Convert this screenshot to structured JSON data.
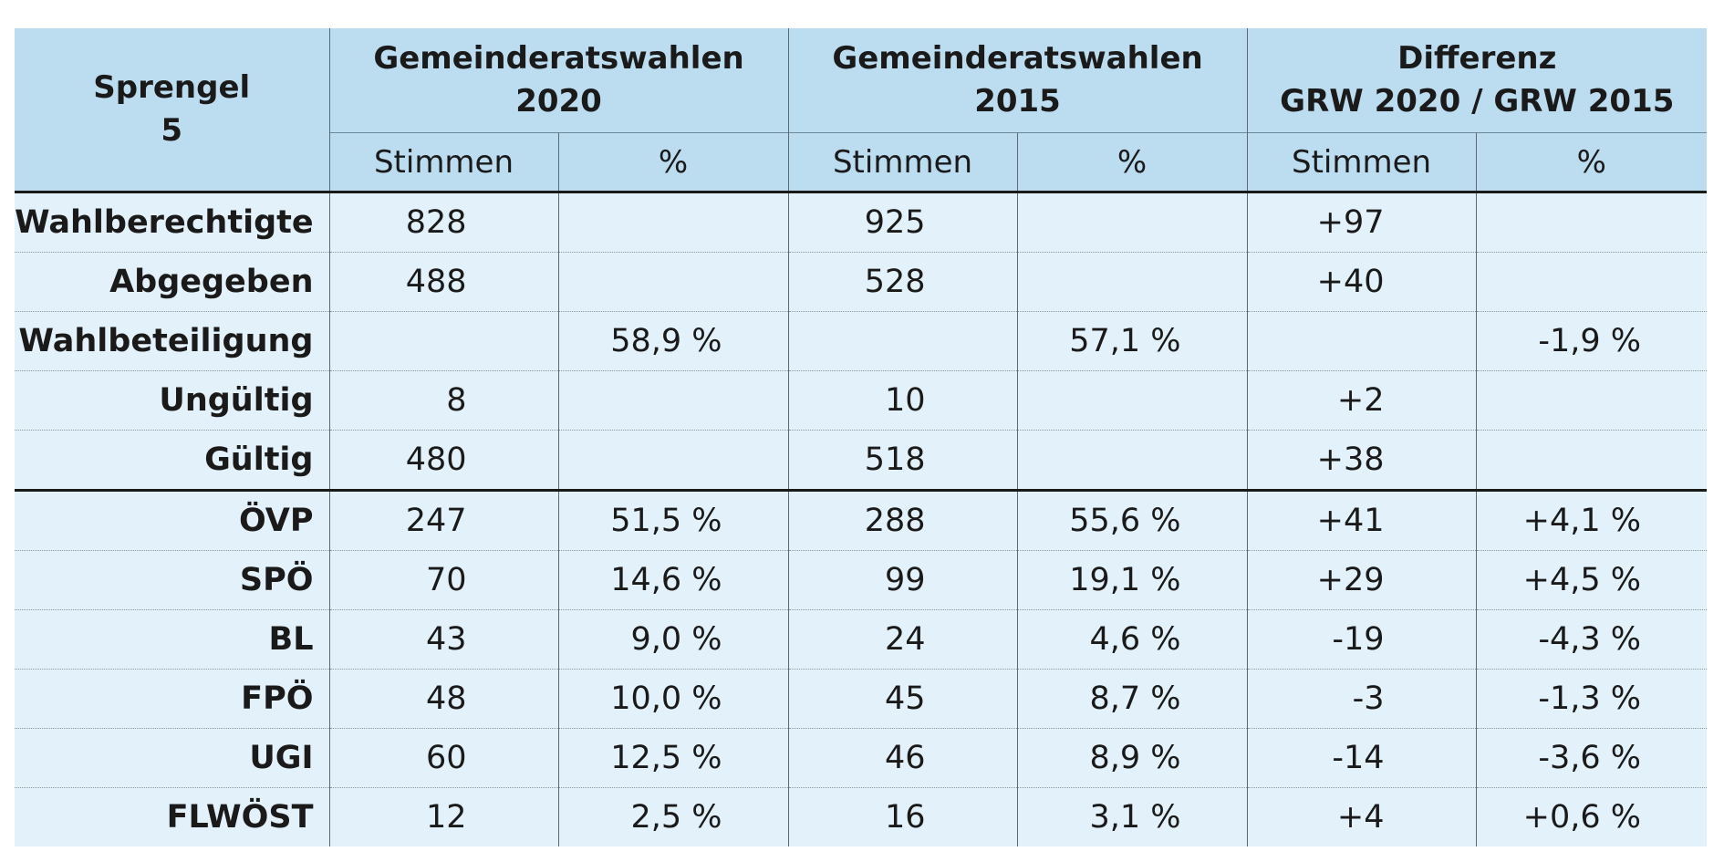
{
  "header": {
    "sprengel": [
      "Sprengel",
      "5"
    ],
    "groups": [
      [
        "Gemeinderatswahlen",
        "2020"
      ],
      [
        "Gemeinderatswahlen",
        "2015"
      ],
      [
        "Differenz",
        "GRW 2020 / GRW 2015"
      ]
    ],
    "subheaders": [
      "Stimmen",
      "%",
      "Stimmen",
      "%",
      "Stimmen",
      "%"
    ]
  },
  "rows": [
    {
      "label": "Wahlberechtigte",
      "values": [
        "828",
        "",
        "925",
        "",
        "+97",
        ""
      ]
    },
    {
      "label": "Abgegeben",
      "values": [
        "488",
        "",
        "528",
        "",
        "+40",
        ""
      ]
    },
    {
      "label": "Wahlbeteiligung",
      "values": [
        "",
        "58,9 %",
        "",
        "57,1 %",
        "",
        "-1,9 %"
      ]
    },
    {
      "label": "Ungültig",
      "values": [
        "8",
        "",
        "10",
        "",
        "+2",
        ""
      ]
    },
    {
      "label": "Gültig",
      "values": [
        "480",
        "",
        "518",
        "",
        "+38",
        ""
      ]
    },
    {
      "label": "ÖVP",
      "values": [
        "247",
        "51,5 %",
        "288",
        "55,6 %",
        "+41",
        "+4,1 %"
      ]
    },
    {
      "label": "SPÖ",
      "values": [
        "70",
        "14,6 %",
        "99",
        "19,1 %",
        "+29",
        "+4,5 %"
      ]
    },
    {
      "label": "BL",
      "values": [
        "43",
        "9,0 %",
        "24",
        "4,6 %",
        "-19",
        "-4,3 %"
      ]
    },
    {
      "label": "FPÖ",
      "values": [
        "48",
        "10,0 %",
        "45",
        "8,7 %",
        "-3",
        "-1,3 %"
      ]
    },
    {
      "label": "UGI",
      "values": [
        "60",
        "12,5 %",
        "46",
        "8,9 %",
        "-14",
        "-3,6 %"
      ]
    },
    {
      "label": "FLWÖST",
      "values": [
        "12",
        "2,5 %",
        "16",
        "3,1 %",
        "+4",
        "+0,6 %"
      ]
    }
  ],
  "colors": {
    "header_bg": "#bcdcf0",
    "body_bg": "#e3f1fa",
    "text": "#1a1a1a"
  }
}
